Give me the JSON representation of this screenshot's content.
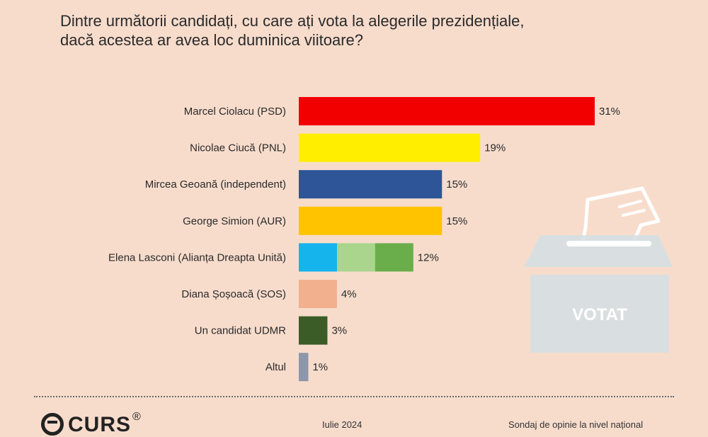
{
  "title": "Dintre următorii candidați, cu care ați vota la alegerile prezidențiale,\ndacă acestea ar avea loc duminica viitoare?",
  "chart_data": {
    "type": "bar",
    "orientation": "horizontal",
    "categories": [
      "Marcel Ciolacu (PSD)",
      "Nicolae Ciucă (PNL)",
      "Mircea Geoană (independent)",
      "George Simion (AUR)",
      "Elena Lasconi (Alianța Dreapta Unită)",
      "Diana Șoșoacă (SOS)",
      "Un candidat UDMR",
      "Altul"
    ],
    "values": [
      31,
      19,
      15,
      15,
      12,
      4,
      3,
      1
    ],
    "value_labels": [
      "31%",
      "19%",
      "15%",
      "15%",
      "12%",
      "4%",
      "3%",
      "1%"
    ],
    "unit": "%",
    "xlim": [
      0,
      31
    ],
    "grid": false,
    "colors": [
      [
        "#f20000"
      ],
      [
        "#ffee00"
      ],
      [
        "#2d5598"
      ],
      [
        "#ffc300"
      ],
      [
        "#15b4ec",
        "#a9d58c",
        "#6aae4b"
      ],
      [
        "#f3b08e"
      ],
      [
        "#3b5c26"
      ],
      [
        "#8c97ab"
      ]
    ]
  },
  "ballot_box": {
    "label": "VOTAT",
    "icon": "ballot-box-icon"
  },
  "footer": {
    "logo_text": "CURS",
    "logo_reg": "®",
    "date": "Iulie 2024",
    "note": "Sondaj de opinie la nivel național"
  }
}
